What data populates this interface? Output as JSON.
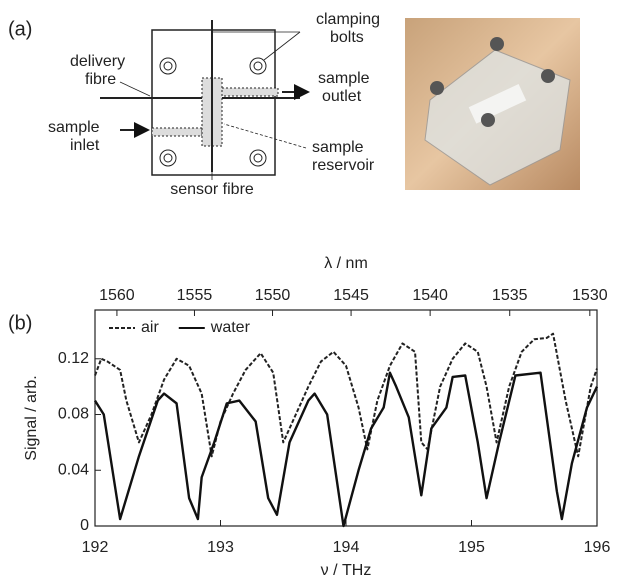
{
  "panel_a": {
    "label": "(a)",
    "clamping_bolts": [
      "clamping",
      "bolts"
    ],
    "delivery_fibre": [
      "delivery",
      "fibre"
    ],
    "sample_outlet": [
      "sample",
      "outlet"
    ],
    "sample_inlet": [
      "sample",
      "inlet"
    ],
    "sample_reservoir": [
      "sample",
      "reservoir"
    ],
    "sensor_fibre": "sensor fibre"
  },
  "chart_data": {
    "type": "line",
    "panel_label": "(b)",
    "x_label": "ν / THz",
    "x2_label": "λ / nm",
    "y_label": "Signal / arb.",
    "xlim": [
      192,
      196
    ],
    "xticks": [
      192,
      193,
      194,
      195,
      196
    ],
    "x2ticks": [
      1560,
      1555,
      1550,
      1545,
      1540,
      1535,
      1530
    ],
    "ylim": [
      0,
      0.155
    ],
    "yticks": [
      0,
      0.04,
      0.08,
      0.12
    ],
    "legend": "upper left",
    "series": [
      {
        "name": "air",
        "color": "#222222",
        "linestyle": "dashed",
        "x": [
          192,
          192.05,
          192.1,
          192.2,
          192.25,
          192.35,
          192.45,
          192.55,
          192.65,
          192.75,
          192.85,
          192.93,
          193.0,
          193.1,
          193.2,
          193.32,
          193.42,
          193.5,
          193.6,
          193.7,
          193.8,
          193.9,
          194.0,
          194.1,
          194.17,
          194.25,
          194.35,
          194.45,
          194.55,
          194.6,
          194.65,
          194.75,
          194.85,
          194.95,
          195.05,
          195.12,
          195.2,
          195.3,
          195.4,
          195.5,
          195.6,
          195.65,
          195.75,
          195.85,
          195.95,
          196
        ],
        "values": [
          0.108,
          0.12,
          0.118,
          0.112,
          0.09,
          0.06,
          0.08,
          0.105,
          0.12,
          0.115,
          0.095,
          0.05,
          0.075,
          0.095,
          0.112,
          0.124,
          0.11,
          0.06,
          0.08,
          0.1,
          0.118,
          0.125,
          0.115,
          0.085,
          0.055,
          0.09,
          0.115,
          0.131,
          0.125,
          0.06,
          0.055,
          0.1,
          0.12,
          0.131,
          0.125,
          0.1,
          0.06,
          0.1,
          0.125,
          0.134,
          0.135,
          0.138,
          0.09,
          0.05,
          0.1,
          0.113
        ]
      },
      {
        "name": "water",
        "color": "#111111",
        "linestyle": "solid",
        "x": [
          192,
          192.07,
          192.2,
          192.35,
          192.5,
          192.55,
          192.65,
          192.75,
          192.82,
          192.85,
          192.95,
          193.05,
          193.15,
          193.28,
          193.38,
          193.45,
          193.55,
          193.7,
          193.75,
          193.85,
          193.98,
          194.1,
          194.2,
          194.3,
          194.35,
          194.4,
          194.5,
          194.6,
          194.68,
          194.8,
          194.85,
          194.95,
          195.05,
          195.12,
          195.22,
          195.35,
          195.55,
          195.68,
          195.72,
          195.8,
          195.92,
          196
        ],
        "values": [
          0.09,
          0.08,
          0.005,
          0.05,
          0.09,
          0.095,
          0.088,
          0.02,
          0.005,
          0.035,
          0.06,
          0.088,
          0.09,
          0.075,
          0.02,
          0.008,
          0.06,
          0.09,
          0.095,
          0.08,
          0.0,
          0.04,
          0.07,
          0.085,
          0.11,
          0.1,
          0.078,
          0.022,
          0.07,
          0.085,
          0.107,
          0.108,
          0.06,
          0.02,
          0.06,
          0.108,
          0.11,
          0.025,
          0.005,
          0.045,
          0.085,
          0.1
        ]
      }
    ]
  }
}
